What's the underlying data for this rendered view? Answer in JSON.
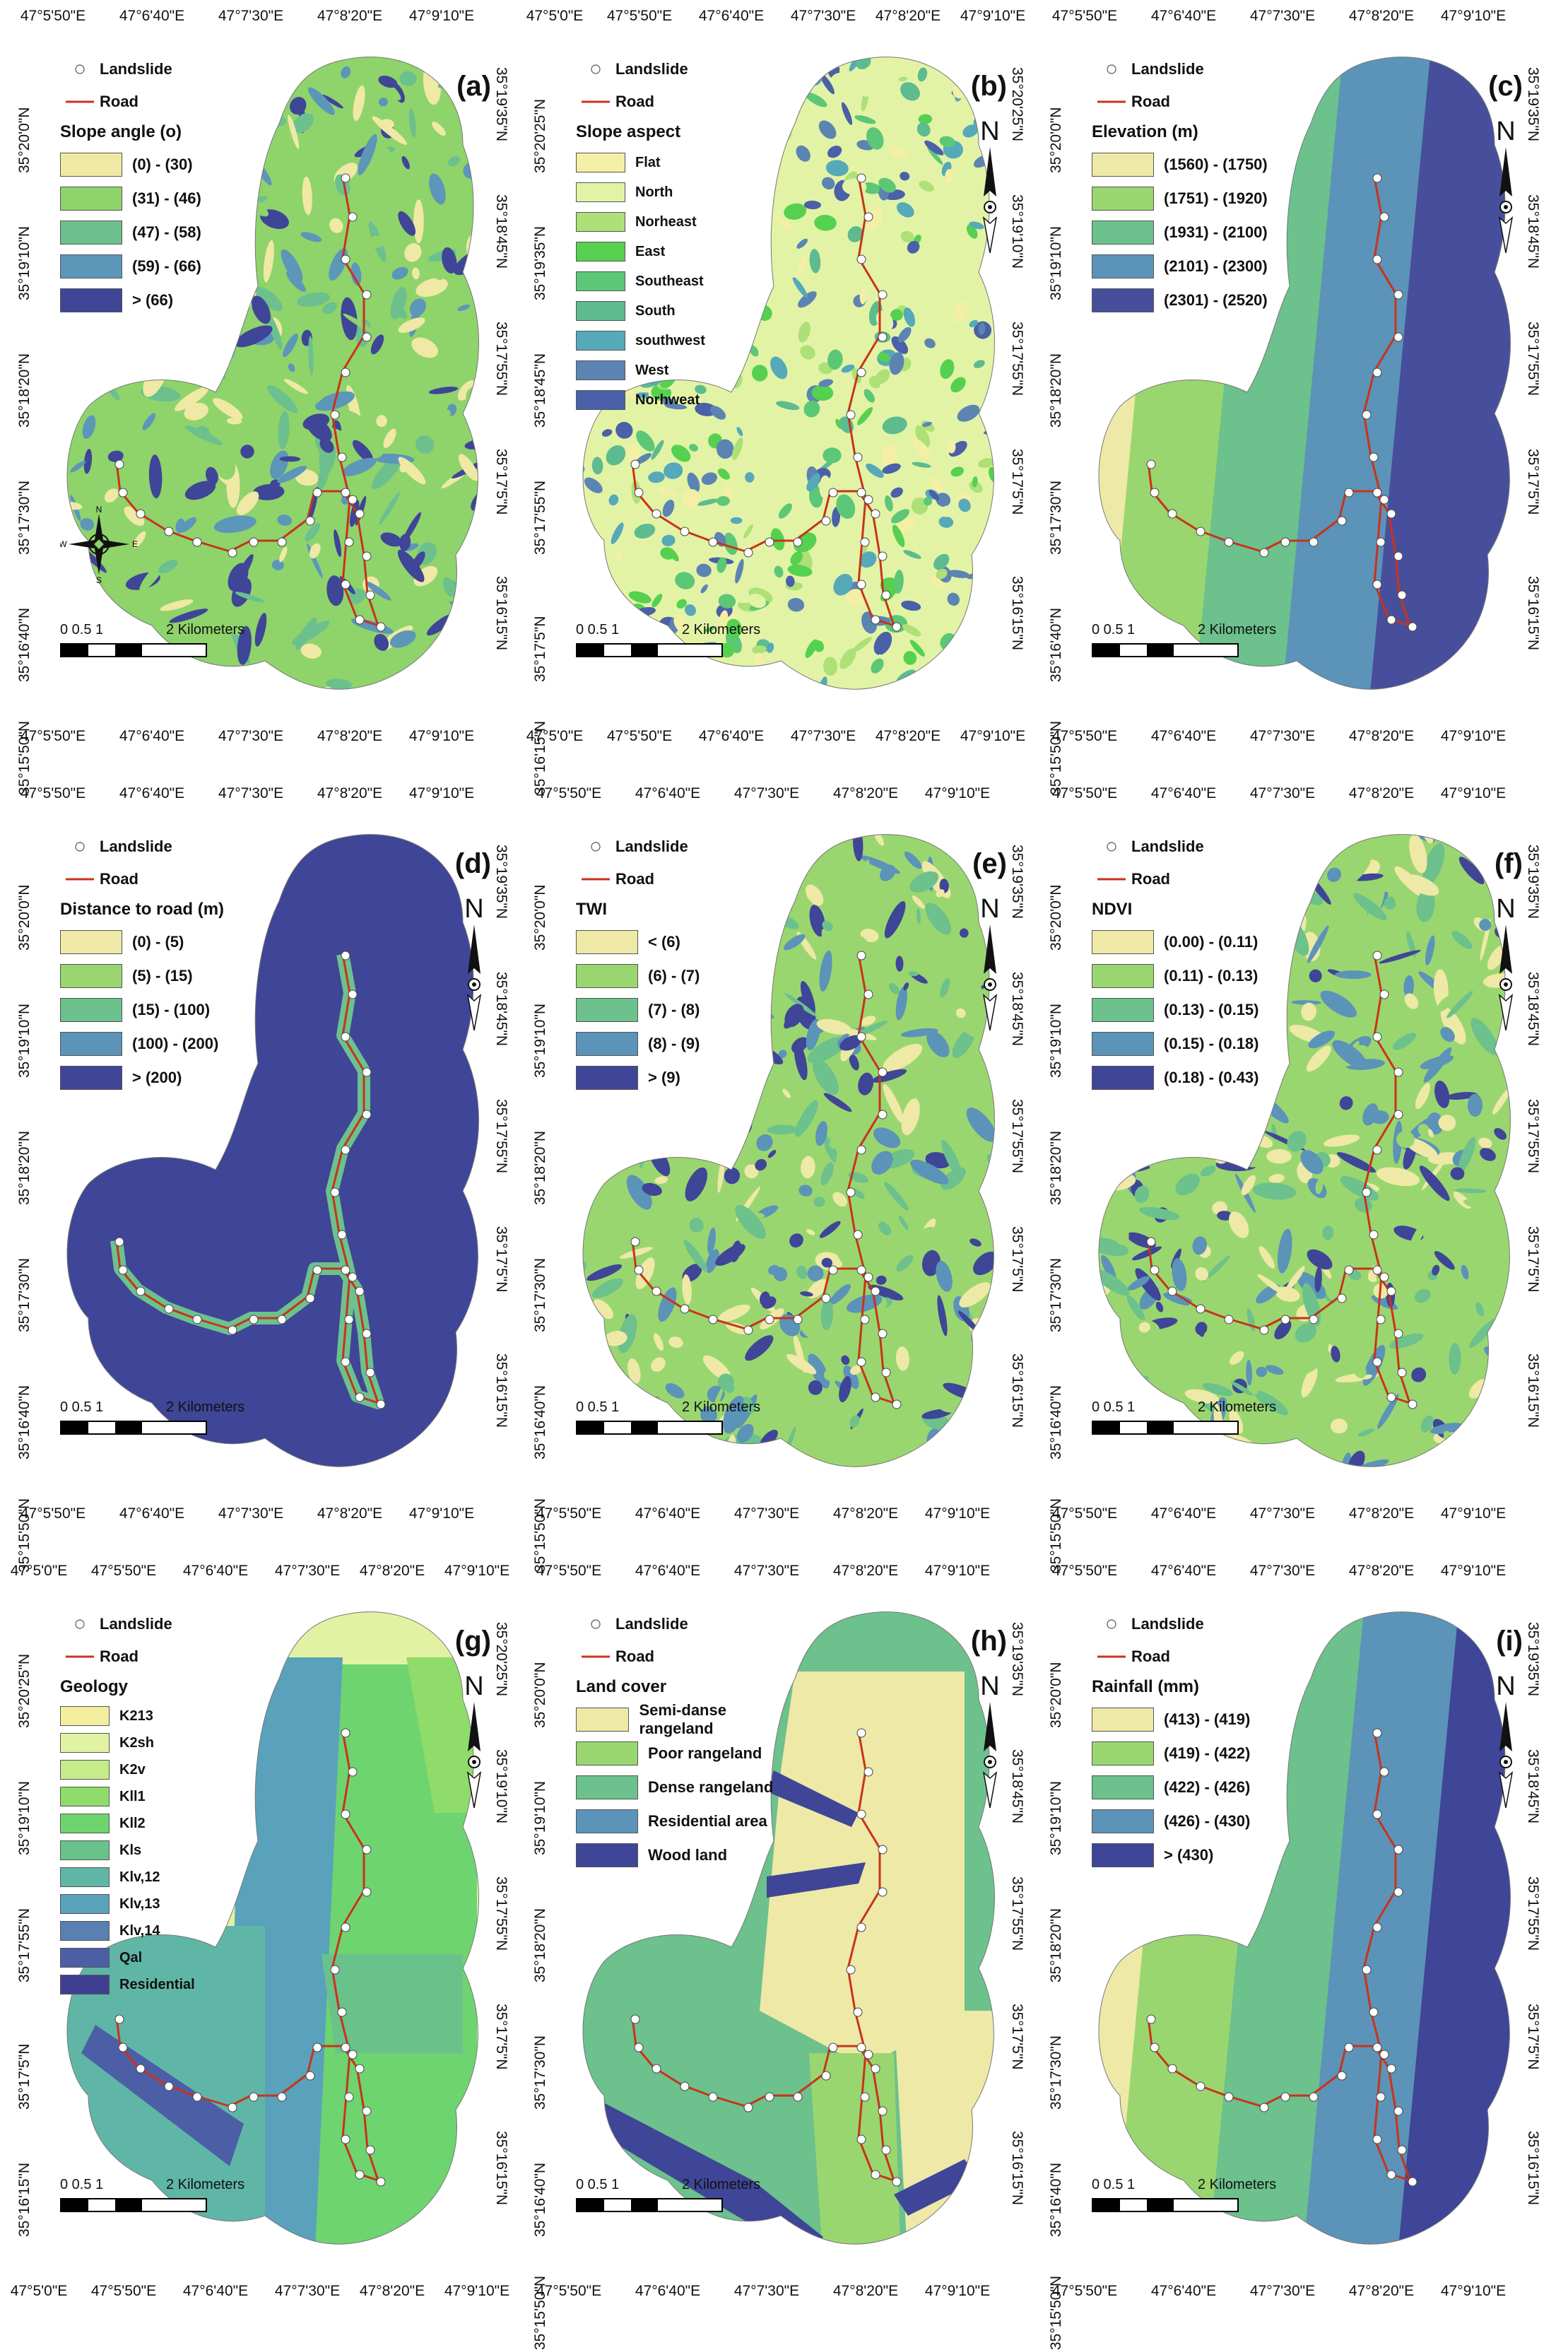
{
  "common": {
    "landslide_label": "Landslide",
    "road_label": "Road",
    "north": "N",
    "scale_numbers": "0   0.5   1",
    "scale_unit": "2 Kilometers",
    "compass": {
      "n": "N",
      "s": "S",
      "e": "E",
      "w": "W"
    },
    "colors": {
      "road": "#c8331c",
      "landslide": "#ffffff",
      "background": "#ffffff"
    }
  },
  "panels": [
    {
      "id": "a",
      "label": "(a)",
      "top_coords": [
        "47°5'50\"E",
        "47°6'40\"E",
        "47°7'30\"E",
        "47°8'20\"E",
        "47°9'10\"E"
      ],
      "bottom_coords": [
        "47°5'50\"E",
        "47°6'40\"E",
        "47°7'30\"E",
        "47°8'20\"E",
        "47°9'10\"E"
      ],
      "left_coords": [
        "35°20'0\"N",
        "35°19'10\"N",
        "35°18'20\"N",
        "35°17'30\"N",
        "35°16'40\"N",
        "35°15'50\"N"
      ],
      "right_coords": [
        "35°19'35\"N",
        "35°18'45\"N",
        "35°17'55\"N",
        "35°17'5\"N",
        "35°16'15\"N"
      ],
      "legend_title": "Slope angle (o)",
      "classes": [
        {
          "label": "(0) - (30)",
          "color": "#efe9a5"
        },
        {
          "label": "(31) - (46)",
          "color": "#8fd36b"
        },
        {
          "label": "(47) - (58)",
          "color": "#6cc08e"
        },
        {
          "label": "(59) - (66)",
          "color": "#5c96b9"
        },
        {
          "label": "> (66)",
          "color": "#3f4597"
        }
      ],
      "show_north": false,
      "show_compass": true
    },
    {
      "id": "b",
      "label": "(b)",
      "top_coords": [
        "47°5'0\"E",
        "47°5'50\"E",
        "47°6'40\"E",
        "47°7'30\"E",
        "47°8'20\"E",
        "47°9'10\"E"
      ],
      "bottom_coords": [
        "47°5'0\"E",
        "47°5'50\"E",
        "47°6'40\"E",
        "47°7'30\"E",
        "47°8'20\"E",
        "47°9'10\"E"
      ],
      "left_coords": [
        "35°20'25\"N",
        "35°19'35\"N",
        "35°18'45\"N",
        "35°17'55\"N",
        "35°17'5\"N",
        "35°16'15\"N"
      ],
      "right_coords": [
        "35°20'25\"N",
        "35°19'10\"N",
        "35°17'55\"N",
        "35°17'5\"N",
        "35°16'15\"N"
      ],
      "legend_title": "Slope aspect",
      "classes": [
        {
          "label": "Flat",
          "color": "#f3f0a6"
        },
        {
          "label": "North",
          "color": "#e3f3a5"
        },
        {
          "label": "Norheast",
          "color": "#aee078"
        },
        {
          "label": "East",
          "color": "#55d14f"
        },
        {
          "label": "Southeast",
          "color": "#5cc776"
        },
        {
          "label": "South",
          "color": "#5dbb8f"
        },
        {
          "label": "southwest",
          "color": "#55a9b9"
        },
        {
          "label": "West",
          "color": "#5b84b3"
        },
        {
          "label": "Norhweat",
          "color": "#4a60a8"
        }
      ],
      "show_north": true,
      "show_compass": false
    },
    {
      "id": "c",
      "label": "(c)",
      "top_coords": [
        "47°5'50\"E",
        "47°6'40\"E",
        "47°7'30\"E",
        "47°8'20\"E",
        "47°9'10\"E"
      ],
      "bottom_coords": [
        "47°5'50\"E",
        "47°6'40\"E",
        "47°7'30\"E",
        "47°8'20\"E",
        "47°9'10\"E"
      ],
      "left_coords": [
        "35°20'0\"N",
        "35°19'10\"N",
        "35°18'20\"N",
        "35°17'30\"N",
        "35°16'40\"N",
        "35°15'50\"N"
      ],
      "right_coords": [
        "35°19'35\"N",
        "35°18'45\"N",
        "35°17'55\"N",
        "35°17'5\"N",
        "35°16'15\"N"
      ],
      "legend_title": "Elevation (m)",
      "classes": [
        {
          "label": "(1560) - (1750)",
          "color": "#eee9a6"
        },
        {
          "label": "(1751) - (1920)",
          "color": "#9ad66f"
        },
        {
          "label": "(1931) - (2100)",
          "color": "#6cc18c"
        },
        {
          "label": "(2101) - (2300)",
          "color": "#5c93b8"
        },
        {
          "label": "(2301) - (2520)",
          "color": "#474f9c"
        }
      ],
      "show_north": true,
      "show_compass": false
    },
    {
      "id": "d",
      "label": "(d)",
      "top_coords": [
        "47°5'50\"E",
        "47°6'40\"E",
        "47°7'30\"E",
        "47°8'20\"E",
        "47°9'10\"E"
      ],
      "bottom_coords": [
        "47°5'50\"E",
        "47°6'40\"E",
        "47°7'30\"E",
        "47°8'20\"E",
        "47°9'10\"E"
      ],
      "left_coords": [
        "35°20'0\"N",
        "35°19'10\"N",
        "35°18'20\"N",
        "35°17'30\"N",
        "35°16'40\"N",
        "35°15'50\"N"
      ],
      "right_coords": [
        "35°19'35\"N",
        "35°18'45\"N",
        "35°17'55\"N",
        "35°17'5\"N",
        "35°16'15\"N"
      ],
      "legend_title": "Distance to road (m)",
      "classes": [
        {
          "label": "(0) - (5)",
          "color": "#eee9a6"
        },
        {
          "label": "(5) - (15)",
          "color": "#9ad66f"
        },
        {
          "label": "(15) - (100)",
          "color": "#6cc18c"
        },
        {
          "label": "(100) - (200)",
          "color": "#5c93b8"
        },
        {
          "label": "> (200)",
          "color": "#3f4597"
        }
      ],
      "show_north": true,
      "show_compass": false
    },
    {
      "id": "e",
      "label": "(e)",
      "top_coords": [
        "47°5'50\"E",
        "47°6'40\"E",
        "47°7'30\"E",
        "47°8'20\"E",
        "47°9'10\"E"
      ],
      "bottom_coords": [
        "47°5'50\"E",
        "47°6'40\"E",
        "47°7'30\"E",
        "47°8'20\"E",
        "47°9'10\"E"
      ],
      "left_coords": [
        "35°20'0\"N",
        "35°19'10\"N",
        "35°18'20\"N",
        "35°17'30\"N",
        "35°16'40\"N",
        "35°15'50\"N"
      ],
      "right_coords": [
        "35°19'35\"N",
        "35°18'45\"N",
        "35°17'55\"N",
        "35°17'5\"N",
        "35°16'15\"N"
      ],
      "legend_title": "TWI",
      "classes": [
        {
          "label": "< (6)",
          "color": "#eee9a6"
        },
        {
          "label": "(6) - (7)",
          "color": "#9ad66f"
        },
        {
          "label": "(7) - (8)",
          "color": "#6cc18c"
        },
        {
          "label": "(8) - (9)",
          "color": "#5c93b8"
        },
        {
          "label": "> (9)",
          "color": "#3f4597"
        }
      ],
      "show_north": true,
      "show_compass": false
    },
    {
      "id": "f",
      "label": "(f)",
      "top_coords": [
        "47°5'50\"E",
        "47°6'40\"E",
        "47°7'30\"E",
        "47°8'20\"E",
        "47°9'10\"E"
      ],
      "bottom_coords": [
        "47°5'50\"E",
        "47°6'40\"E",
        "47°7'30\"E",
        "47°8'20\"E",
        "47°9'10\"E"
      ],
      "left_coords": [
        "35°20'0\"N",
        "35°19'10\"N",
        "35°18'20\"N",
        "35°17'30\"N",
        "35°16'40\"N",
        "35°15'50\"N"
      ],
      "right_coords": [
        "35°19'35\"N",
        "35°18'45\"N",
        "35°17'55\"N",
        "35°17'5\"N",
        "35°16'15\"N"
      ],
      "legend_title": "NDVI",
      "classes": [
        {
          "label": "(0.00) - (0.11)",
          "color": "#eee9a6"
        },
        {
          "label": "(0.11) - (0.13)",
          "color": "#9ad66f"
        },
        {
          "label": "(0.13) - (0.15)",
          "color": "#6cc18c"
        },
        {
          "label": "(0.15) - (0.18)",
          "color": "#5c93b8"
        },
        {
          "label": "(0.18) - (0.43)",
          "color": "#3f4597"
        }
      ],
      "show_north": true,
      "show_compass": false
    },
    {
      "id": "g",
      "label": "(g)",
      "top_coords": [
        "47°5'0\"E",
        "47°5'50\"E",
        "47°6'40\"E",
        "47°7'30\"E",
        "47°8'20\"E",
        "47°9'10\"E"
      ],
      "bottom_coords": [
        "47°5'0\"E",
        "47°5'50\"E",
        "47°6'40\"E",
        "47°7'30\"E",
        "47°8'20\"E",
        "47°9'10\"E"
      ],
      "left_coords": [
        "35°20'25\"N",
        "35°19'10\"N",
        "35°17'55\"N",
        "35°17'5\"N",
        "35°16'15\"N"
      ],
      "right_coords": [
        "35°20'25\"N",
        "35°19'10\"N",
        "35°17'55\"N",
        "35°17'5\"N",
        "35°16'15\"N"
      ],
      "legend_title": "Geology",
      "classes": [
        {
          "label": "K213",
          "color": "#f3ef9f"
        },
        {
          "label": "K2sh",
          "color": "#e2f2a3"
        },
        {
          "label": "K2v",
          "color": "#c6ec8a"
        },
        {
          "label": "Kll1",
          "color": "#8fdc6a"
        },
        {
          "label": "Kll2",
          "color": "#6ed46f"
        },
        {
          "label": "Kls",
          "color": "#6ac28b"
        },
        {
          "label": "Klv,12",
          "color": "#60b6a6"
        },
        {
          "label": "Klv,13",
          "color": "#5aa1bc"
        },
        {
          "label": "Klv,14",
          "color": "#5a80b2"
        },
        {
          "label": "Qal",
          "color": "#4c5fa6"
        },
        {
          "label": "Residential",
          "color": "#3f3f91"
        }
      ],
      "show_north": true,
      "show_compass": false
    },
    {
      "id": "h",
      "label": "(h)",
      "top_coords": [
        "47°5'50\"E",
        "47°6'40\"E",
        "47°7'30\"E",
        "47°8'20\"E",
        "47°9'10\"E"
      ],
      "bottom_coords": [
        "47°5'50\"E",
        "47°6'40\"E",
        "47°7'30\"E",
        "47°8'20\"E",
        "47°9'10\"E"
      ],
      "left_coords": [
        "35°20'0\"N",
        "35°19'10\"N",
        "35°18'20\"N",
        "35°17'30\"N",
        "35°16'40\"N",
        "35°15'50\"N"
      ],
      "right_coords": [
        "35°19'35\"N",
        "35°18'45\"N",
        "35°17'55\"N",
        "35°17'5\"N",
        "35°16'15\"N"
      ],
      "legend_title": "Land cover",
      "classes": [
        {
          "label": "Semi-danse rangeland",
          "color": "#eee9a6"
        },
        {
          "label": "Poor rangeland",
          "color": "#9ad66f"
        },
        {
          "label": "Dense rangeland",
          "color": "#6cc18c"
        },
        {
          "label": "Residential area",
          "color": "#5c93b8"
        },
        {
          "label": "Wood land",
          "color": "#3f4597"
        }
      ],
      "show_north": true,
      "show_compass": false
    },
    {
      "id": "i",
      "label": "(i)",
      "top_coords": [
        "47°5'50\"E",
        "47°6'40\"E",
        "47°7'30\"E",
        "47°8'20\"E",
        "47°9'10\"E"
      ],
      "bottom_coords": [
        "47°5'50\"E",
        "47°6'40\"E",
        "47°7'30\"E",
        "47°8'20\"E",
        "47°9'10\"E"
      ],
      "left_coords": [
        "35°20'0\"N",
        "35°19'10\"N",
        "35°18'20\"N",
        "35°17'30\"N",
        "35°16'40\"N",
        "35°15'50\"N"
      ],
      "right_coords": [
        "35°19'35\"N",
        "35°18'45\"N",
        "35°17'55\"N",
        "35°17'5\"N",
        "35°16'15\"N"
      ],
      "legend_title": "Rainfall (mm)",
      "classes": [
        {
          "label": "(413) - (419)",
          "color": "#eee9a6"
        },
        {
          "label": "(419) - (422)",
          "color": "#9ad66f"
        },
        {
          "label": "(422) - (426)",
          "color": "#6cc18c"
        },
        {
          "label": "(426) - (430)",
          "color": "#5c93b8"
        },
        {
          "label": "> (430)",
          "color": "#3f4597"
        }
      ],
      "show_north": true,
      "show_compass": false
    }
  ]
}
